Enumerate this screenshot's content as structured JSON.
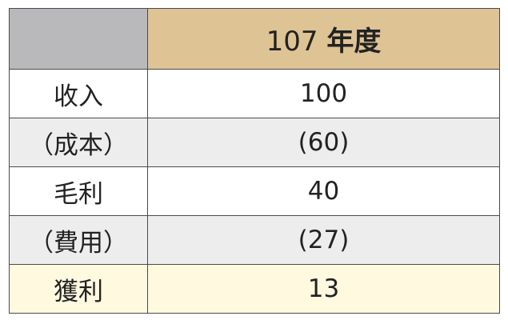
{
  "table": {
    "header": {
      "corner": "",
      "year_number": "107",
      "year_suffix": "年度"
    },
    "rows": [
      {
        "label": "收入",
        "value": "100",
        "style": "white"
      },
      {
        "label": "（成本）",
        "value": "(60)",
        "style": "grey"
      },
      {
        "label": "毛利",
        "value": "40",
        "style": "white"
      },
      {
        "label": "（費用）",
        "value": "(27)",
        "style": "grey"
      },
      {
        "label": "獲利",
        "value": "13",
        "style": "cream"
      }
    ],
    "colors": {
      "header_corner": "#b9b9bb",
      "header_year": "#dec394",
      "row_grey": "#ededee",
      "row_cream": "#fff9e0",
      "border": "#4a4a4a"
    }
  }
}
